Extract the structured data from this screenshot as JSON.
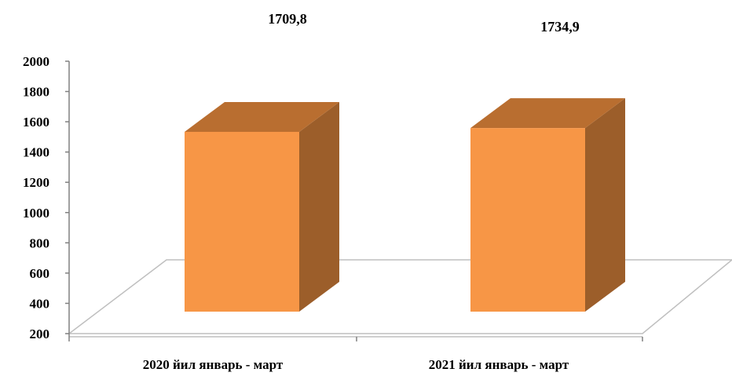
{
  "chart_data": {
    "type": "bar",
    "style": "3d",
    "categories": [
      "2020 йил январь - март",
      "2021 йил январь - март"
    ],
    "values": [
      1709.8,
      1734.9
    ],
    "data_labels": [
      "1709,8",
      "1734,9"
    ],
    "ylim": [
      200,
      2000
    ],
    "yticks": [
      "2000",
      "1800",
      "1600",
      "1400",
      "1200",
      "1000",
      "800",
      "600",
      "400",
      "200"
    ],
    "grid": false,
    "legend": "none",
    "colors": {
      "bar_front": "#F79646",
      "bar_side": "#9C5E2A",
      "bar_top": "#B96E30",
      "floor": "#BFBFBF",
      "axis": "#808080"
    }
  }
}
